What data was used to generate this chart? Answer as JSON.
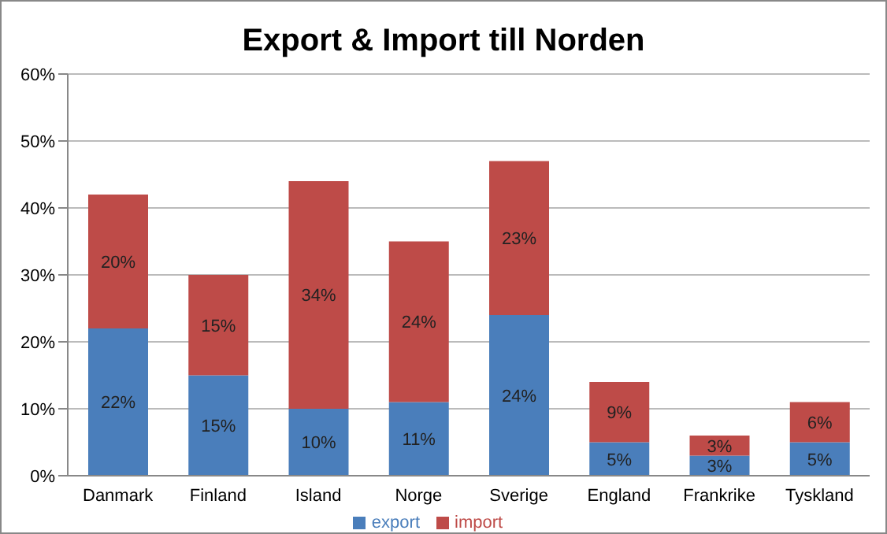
{
  "chart_data": {
    "type": "bar",
    "title": "Export & Import till Norden",
    "stacked": true,
    "categories": [
      "Danmark",
      "Finland",
      "Island",
      "Norge",
      "Sverige",
      "England",
      "Frankrike",
      "Tyskland"
    ],
    "series": [
      {
        "name": "export",
        "color": "#4a7ebb",
        "values": [
          22,
          15,
          10,
          11,
          24,
          5,
          3,
          5
        ],
        "value_labels": [
          "22%",
          "15%",
          "10%",
          "11%",
          "24%",
          "5%",
          "3%",
          "5%"
        ]
      },
      {
        "name": "import",
        "color": "#be4b48",
        "values": [
          20,
          15,
          34,
          24,
          23,
          9,
          3,
          6
        ],
        "value_labels": [
          "20%",
          "15%",
          "34%",
          "24%",
          "23%",
          "9%",
          "3%",
          "6%"
        ]
      }
    ],
    "ylim": [
      0,
      60
    ],
    "yticks": [
      {
        "value": 0,
        "label": "0%"
      },
      {
        "value": 10,
        "label": "10%"
      },
      {
        "value": 20,
        "label": "20%"
      },
      {
        "value": 30,
        "label": "30%"
      },
      {
        "value": 40,
        "label": "40%"
      },
      {
        "value": 50,
        "label": "50%"
      },
      {
        "value": 60,
        "label": "60%"
      }
    ],
    "grid": "y",
    "legend": "bottom"
  }
}
